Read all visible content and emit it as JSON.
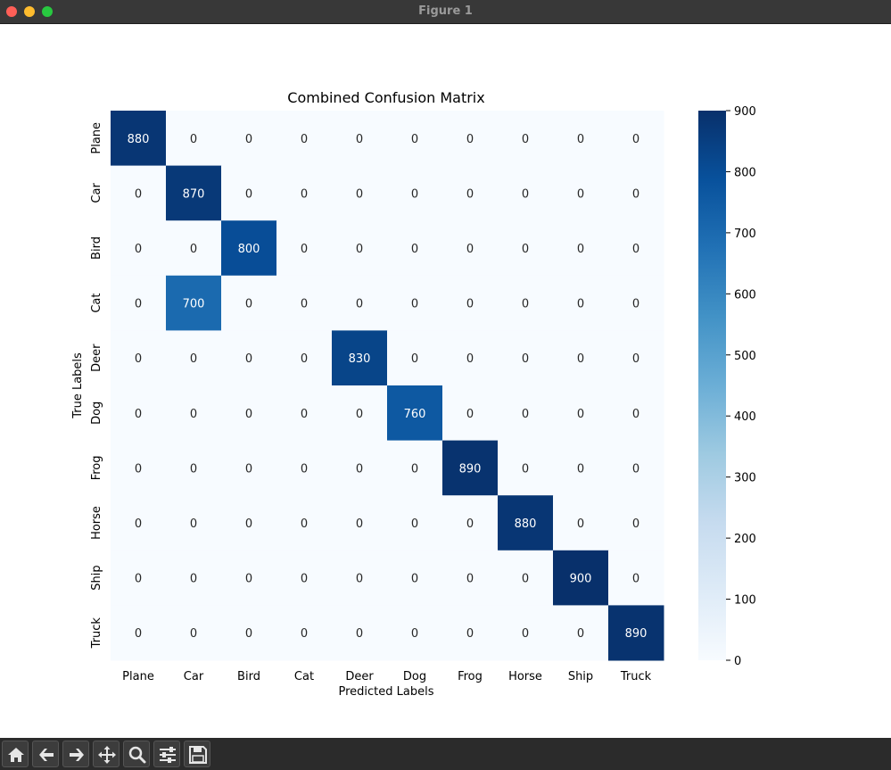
{
  "window": {
    "title": "Figure 1"
  },
  "toolbar": {
    "buttons": [
      {
        "name": "home-button",
        "icon": "home-icon"
      },
      {
        "name": "back-button",
        "icon": "arrow-left-icon"
      },
      {
        "name": "forward-button",
        "icon": "arrow-right-icon"
      },
      {
        "name": "pan-button",
        "icon": "move-icon"
      },
      {
        "name": "zoom-button",
        "icon": "magnifier-icon"
      },
      {
        "name": "configure-subplots-button",
        "icon": "sliders-icon"
      },
      {
        "name": "save-button",
        "icon": "floppy-icon"
      }
    ]
  },
  "chart_data": {
    "type": "heatmap",
    "title": "Combined Confusion Matrix",
    "xlabel": "Predicted Labels",
    "ylabel": "True Labels",
    "x_categories": [
      "Plane",
      "Car",
      "Bird",
      "Cat",
      "Deer",
      "Dog",
      "Frog",
      "Horse",
      "Ship",
      "Truck"
    ],
    "y_categories": [
      "Plane",
      "Car",
      "Bird",
      "Cat",
      "Deer",
      "Dog",
      "Frog",
      "Horse",
      "Ship",
      "Truck"
    ],
    "values": [
      [
        880,
        0,
        0,
        0,
        0,
        0,
        0,
        0,
        0,
        0
      ],
      [
        0,
        870,
        0,
        0,
        0,
        0,
        0,
        0,
        0,
        0
      ],
      [
        0,
        0,
        800,
        0,
        0,
        0,
        0,
        0,
        0,
        0
      ],
      [
        0,
        700,
        0,
        0,
        0,
        0,
        0,
        0,
        0,
        0
      ],
      [
        0,
        0,
        0,
        0,
        830,
        0,
        0,
        0,
        0,
        0
      ],
      [
        0,
        0,
        0,
        0,
        0,
        760,
        0,
        0,
        0,
        0
      ],
      [
        0,
        0,
        0,
        0,
        0,
        0,
        890,
        0,
        0,
        0
      ],
      [
        0,
        0,
        0,
        0,
        0,
        0,
        0,
        880,
        0,
        0
      ],
      [
        0,
        0,
        0,
        0,
        0,
        0,
        0,
        0,
        900,
        0
      ],
      [
        0,
        0,
        0,
        0,
        0,
        0,
        0,
        0,
        0,
        890
      ]
    ],
    "colormap": "Blues",
    "vmin": 0,
    "vmax": 900,
    "colorbar_ticks": [
      0,
      100,
      200,
      300,
      400,
      500,
      600,
      700,
      800,
      900
    ],
    "annotations": true,
    "grid": false
  }
}
